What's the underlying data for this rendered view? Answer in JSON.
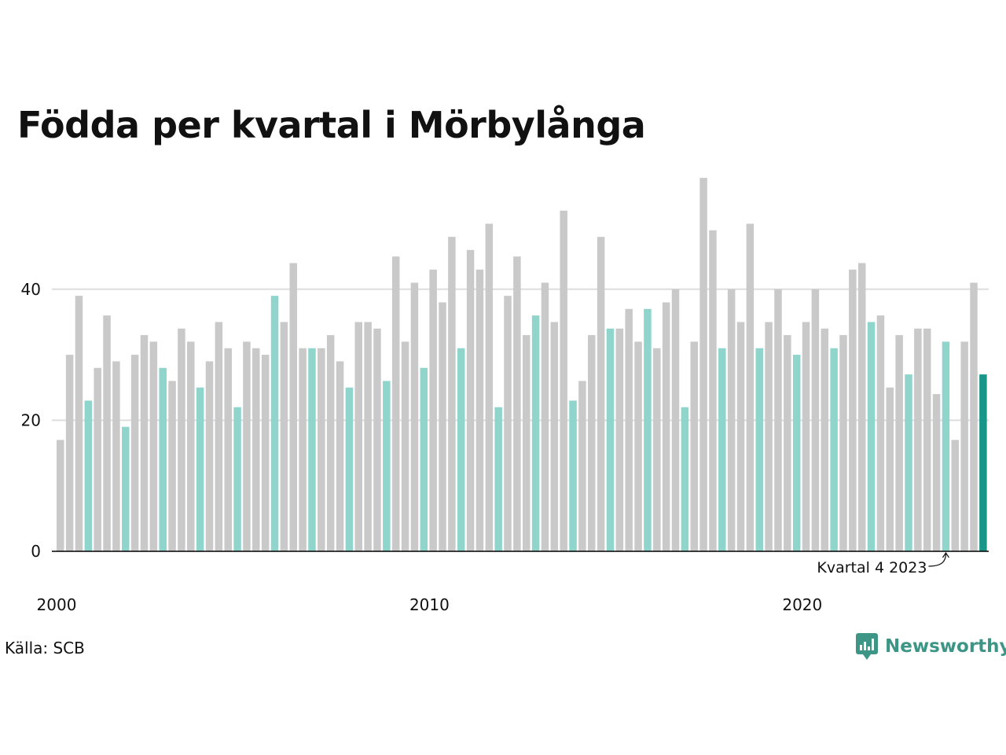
{
  "title": "Födda per kvartal i Mörbylånga",
  "source": "Källa: SCB",
  "brand": "Newsworthy",
  "colors": {
    "bar_default": "#c9c9c9",
    "bar_same_quarter": "#8fd5cc",
    "bar_latest": "#19968a",
    "gridline": "#dddddd",
    "axis": "#000000",
    "brand": "#3d9585"
  },
  "chart_data": {
    "type": "bar",
    "title": "Födda per kvartal i Mörbylånga",
    "xlabel": "",
    "ylabel": "",
    "ylim": [
      0,
      57
    ],
    "yticks": [
      0,
      20,
      40
    ],
    "xtick_labels": [
      "2000",
      "2010",
      "2020"
    ],
    "grid": true,
    "annotation": "Kvartal 4 2023",
    "start_year": 2000,
    "values": [
      17,
      30,
      39,
      23,
      28,
      36,
      29,
      19,
      30,
      33,
      32,
      28,
      26,
      34,
      32,
      25,
      29,
      35,
      31,
      22,
      32,
      31,
      30,
      39,
      35,
      44,
      31,
      31,
      31,
      33,
      29,
      25,
      35,
      35,
      34,
      26,
      45,
      32,
      41,
      28,
      43,
      38,
      48,
      31,
      46,
      43,
      50,
      22,
      39,
      45,
      33,
      36,
      41,
      35,
      52,
      23,
      26,
      33,
      48,
      34,
      34,
      37,
      32,
      37,
      31,
      38,
      40,
      22,
      32,
      57,
      49,
      31,
      40,
      35,
      50,
      31,
      35,
      40,
      33,
      30,
      35,
      40,
      34,
      31,
      33,
      43,
      44,
      35,
      36,
      25,
      33,
      27,
      34,
      34,
      24,
      32,
      17,
      32,
      41,
      27
    ]
  }
}
